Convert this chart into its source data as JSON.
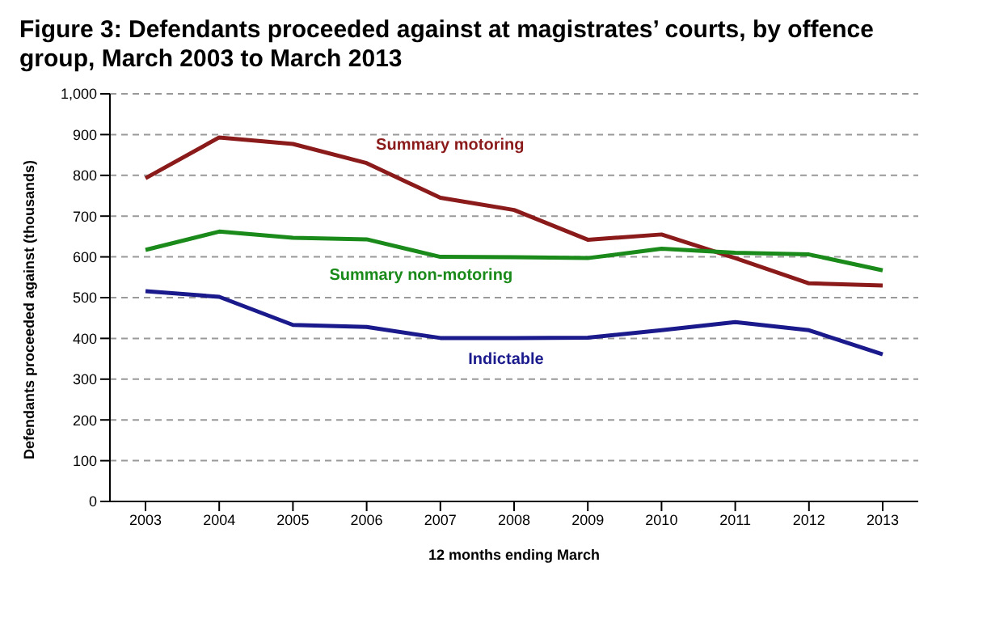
{
  "chart_data": {
    "type": "line",
    "title": "Figure 3:   Defendants proceeded against at magistrates’ courts, by offence group, March 2003 to March 2013",
    "xlabel": "12 months ending March",
    "ylabel": "Defendants proceeded against (thousands)",
    "categories": [
      "2003",
      "2004",
      "2005",
      "2006",
      "2007",
      "2008",
      "2009",
      "2010",
      "2011",
      "2012",
      "2013"
    ],
    "series": [
      {
        "name": "Summary motoring",
        "color": "#8b1a1a",
        "values": [
          793,
          893,
          877,
          830,
          745,
          715,
          642,
          655,
          597,
          535,
          530
        ]
      },
      {
        "name": "Summary non-motoring",
        "color": "#1a8a1a",
        "values": [
          617,
          662,
          647,
          643,
          600,
          599,
          597,
          620,
          610,
          606,
          567
        ]
      },
      {
        "name": "Indictable",
        "color": "#1a1a8c",
        "values": [
          516,
          502,
          433,
          428,
          401,
          401,
          402,
          420,
          440,
          420,
          361
        ]
      }
    ],
    "ylim": [
      0,
      1000
    ],
    "yticks": [
      0,
      100,
      200,
      300,
      400,
      500,
      600,
      700,
      800,
      900,
      {
        "value": 1000,
        "label": "1,000"
      }
    ],
    "grid": "y",
    "legend": false,
    "marker": "none",
    "line_style": "solid"
  }
}
